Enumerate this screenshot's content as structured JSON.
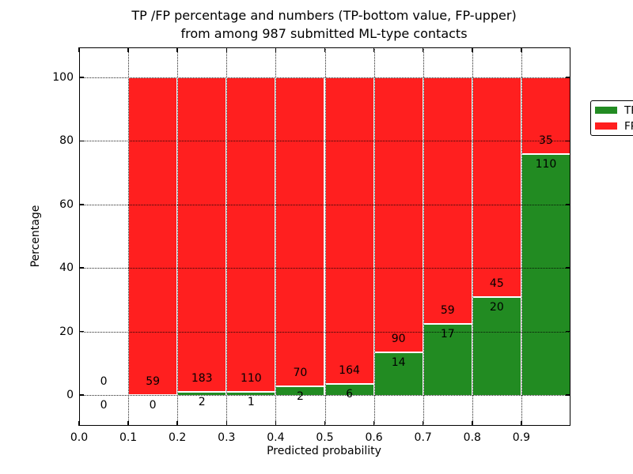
{
  "title": {
    "line1": "TP /FP percentage and numbers (TP-bottom value, FP-upper)",
    "line2": "from among 987 submitted ML-type contacts"
  },
  "axes": {
    "xlabel": "Predicted probability",
    "ylabel": "Percentage",
    "xtick_labels": [
      "0.0",
      "0.1",
      "0.2",
      "0.3",
      "0.4",
      "0.5",
      "0.6",
      "0.7",
      "0.8",
      "0.9"
    ],
    "ytick_labels": [
      "0",
      "20",
      "40",
      "60",
      "80",
      "100"
    ]
  },
  "legend": {
    "items": [
      {
        "label": "TP",
        "color": "#228b22"
      },
      {
        "label": "FP",
        "color": "#ff1f1f"
      }
    ]
  },
  "chart_data": {
    "type": "bar",
    "stacked": true,
    "title": "TP /FP percentage and numbers (TP-bottom value, FP-upper)\nfrom among 987 submitted ML-type contacts",
    "xlabel": "Predicted probability",
    "ylabel": "Percentage",
    "xlim": [
      0.0,
      1.0
    ],
    "ylim": [
      -10,
      110
    ],
    "xticks": [
      0.0,
      0.1,
      0.2,
      0.3,
      0.4,
      0.5,
      0.6,
      0.7,
      0.8,
      0.9
    ],
    "yticks": [
      0,
      20,
      40,
      60,
      80,
      100
    ],
    "grid": "dotted, drawn over bars",
    "legend_position": "upper right",
    "total_contacts": 987,
    "series_colors": {
      "tp": "#228b22",
      "fp": "#ff1f1f"
    },
    "bins": [
      {
        "range": [
          0.0,
          0.1
        ],
        "tp": 0,
        "fp": 0,
        "tp_pct": 0,
        "fp_pct": 0
      },
      {
        "range": [
          0.1,
          0.2
        ],
        "tp": 0,
        "fp": 59,
        "tp_pct": 0,
        "fp_pct": 100
      },
      {
        "range": [
          0.2,
          0.3
        ],
        "tp": 2,
        "fp": 183,
        "tp_pct": 1.08,
        "fp_pct": 98.92
      },
      {
        "range": [
          0.3,
          0.4
        ],
        "tp": 1,
        "fp": 110,
        "tp_pct": 0.9,
        "fp_pct": 99.1
      },
      {
        "range": [
          0.4,
          0.5
        ],
        "tp": 2,
        "fp": 70,
        "tp_pct": 2.78,
        "fp_pct": 97.22
      },
      {
        "range": [
          0.5,
          0.6
        ],
        "tp": 6,
        "fp": 164,
        "tp_pct": 3.53,
        "fp_pct": 96.47
      },
      {
        "range": [
          0.6,
          0.7
        ],
        "tp": 14,
        "fp": 90,
        "tp_pct": 13.46,
        "fp_pct": 86.54
      },
      {
        "range": [
          0.7,
          0.8
        ],
        "tp": 17,
        "fp": 59,
        "tp_pct": 22.37,
        "fp_pct": 77.63
      },
      {
        "range": [
          0.8,
          0.9
        ],
        "tp": 20,
        "fp": 45,
        "tp_pct": 30.77,
        "fp_pct": 69.23
      },
      {
        "range": [
          0.9,
          1.0
        ],
        "tp": 110,
        "fp": 35,
        "tp_pct": 75.86,
        "fp_pct": 24.14
      }
    ]
  }
}
